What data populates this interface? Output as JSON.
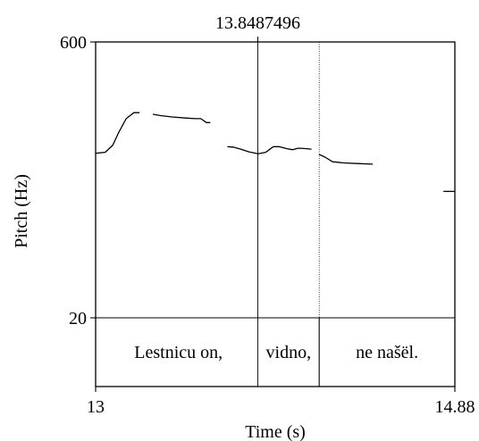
{
  "chart_data": {
    "type": "line",
    "x_unit": "s",
    "y_unit": "Hz",
    "xlabel": "Time (s)",
    "ylabel": "Pitch (Hz)",
    "xlim": [
      13,
      14.88
    ],
    "ylim": [
      20,
      600
    ],
    "y_scale": "log",
    "x_tick_labels": [
      "13",
      "14.88"
    ],
    "y_tick_labels": [
      "20",
      "600"
    ],
    "cursor": {
      "time": 13.8487496,
      "label": "13.8487496"
    },
    "interval_boundaries": [
      13.8487496,
      14.17
    ],
    "intervals": [
      {
        "text": "Lestnicu on,",
        "start": 13,
        "end": 13.8487496
      },
      {
        "text": "vidno,",
        "start": 13.8487496,
        "end": 14.17
      },
      {
        "text": "ne našël.",
        "start": 14.17,
        "end": 14.88
      }
    ],
    "series": [
      {
        "points": [
          [
            13.0,
            152
          ],
          [
            13.05,
            154
          ],
          [
            13.09,
            168
          ],
          [
            13.12,
            196
          ],
          [
            13.16,
            233
          ],
          [
            13.2,
            251
          ],
          [
            13.23,
            251
          ]
        ]
      },
      {
        "points": [
          [
            13.3,
            246
          ],
          [
            13.34,
            242
          ],
          [
            13.4,
            238
          ],
          [
            13.47,
            235
          ],
          [
            13.52,
            233
          ],
          [
            13.55,
            233
          ],
          [
            13.58,
            222
          ],
          [
            13.6,
            222
          ]
        ]
      },
      {
        "points": [
          [
            13.69,
            165
          ],
          [
            13.72,
            164
          ],
          [
            13.76,
            160
          ],
          [
            13.8,
            155
          ],
          [
            13.85,
            151
          ],
          [
            13.89,
            154
          ],
          [
            13.93,
            165
          ],
          [
            13.96,
            165
          ],
          [
            14.0,
            161
          ],
          [
            14.03,
            159
          ],
          [
            14.06,
            162
          ],
          [
            14.1,
            161
          ],
          [
            14.13,
            160
          ]
        ]
      },
      {
        "points": [
          [
            14.17,
            150
          ],
          [
            14.2,
            145
          ],
          [
            14.24,
            137
          ],
          [
            14.3,
            135
          ],
          [
            14.37,
            134
          ],
          [
            14.45,
            133
          ]
        ]
      },
      {
        "points": [
          [
            14.82,
            95
          ],
          [
            14.88,
            95
          ]
        ]
      }
    ]
  }
}
